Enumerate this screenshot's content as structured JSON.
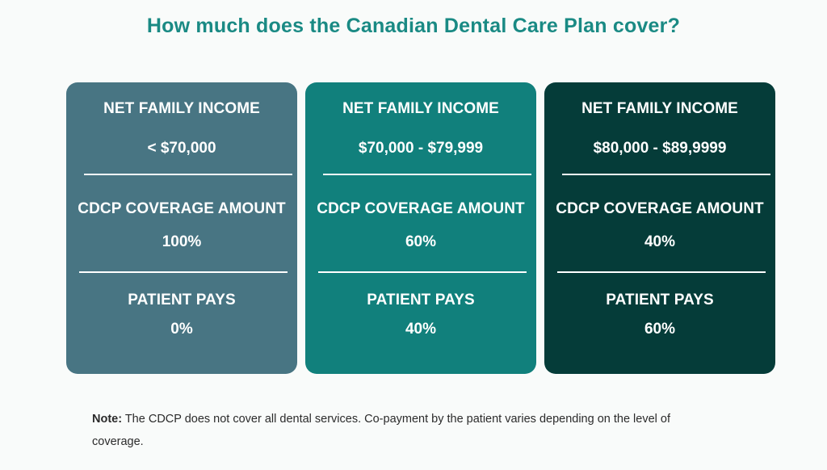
{
  "title": "How much does the Canadian Dental Care Plan cover?",
  "colors": {
    "title": "#1a8a84",
    "card_1": "#487583",
    "card_2": "#11807c",
    "card_3": "#053c39"
  },
  "cards": [
    {
      "income_label": "NET FAMILY INCOME",
      "income_value": "< $70,000",
      "coverage_label": "CDCP COVERAGE AMOUNT",
      "coverage_value": "100%",
      "pays_label": "PATIENT PAYS",
      "pays_value": "0%"
    },
    {
      "income_label": "NET FAMILY INCOME",
      "income_value": "$70,000 - $79,999",
      "coverage_label": "CDCP COVERAGE AMOUNT",
      "coverage_value": "60%",
      "pays_label": "PATIENT PAYS",
      "pays_value": "40%"
    },
    {
      "income_label": "NET FAMILY INCOME",
      "income_value": "$80,000 - $89,9999",
      "coverage_label": "CDCP COVERAGE AMOUNT",
      "coverage_value": "40%",
      "pays_label": "PATIENT PAYS",
      "pays_value": "60%"
    }
  ],
  "note": {
    "label": "Note:",
    "text": " The CDCP does not cover all dental services. Co-payment by the patient varies depending on the level of coverage."
  }
}
